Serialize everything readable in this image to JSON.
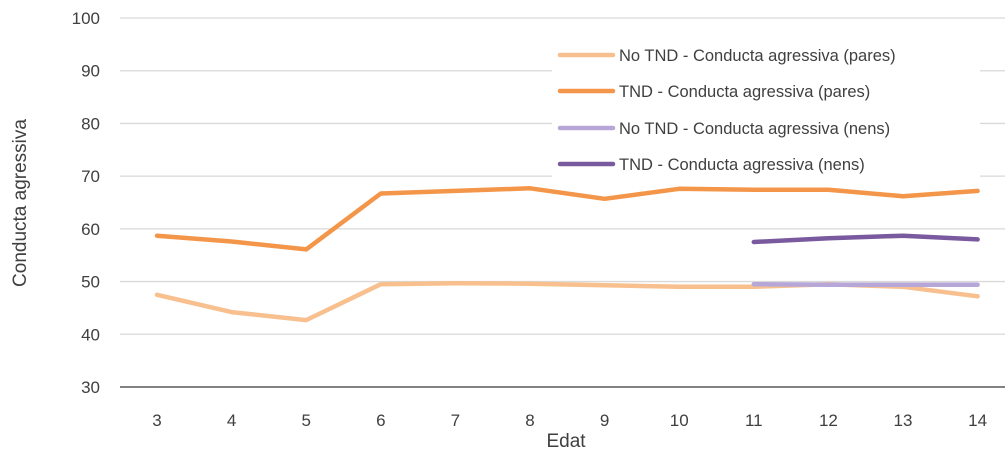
{
  "chart_data": {
    "type": "line",
    "xlabel": "Edat",
    "ylabel": "Conducta agressiva",
    "x": [
      3,
      4,
      5,
      6,
      7,
      8,
      9,
      10,
      11,
      12,
      13,
      14
    ],
    "ylim": [
      30,
      100
    ],
    "yticks": [
      30,
      40,
      50,
      60,
      70,
      80,
      90,
      100
    ],
    "grid": true,
    "legend_position": "top-right",
    "series": [
      {
        "name": "No TND - Conducta agressiva (pares)",
        "color": "#F8C08E",
        "values": [
          47.5,
          44.2,
          42.7,
          49.5,
          49.7,
          49.6,
          49.3,
          49.0,
          49.0,
          49.5,
          49.0,
          47.2
        ]
      },
      {
        "name": "TND - Conducta agressiva (pares)",
        "color": "#F3964A",
        "values": [
          58.7,
          57.6,
          56.1,
          66.7,
          67.2,
          67.7,
          65.7,
          67.6,
          67.4,
          67.4,
          66.2,
          67.2
        ]
      },
      {
        "name": "No TND - Conducta agressiva (nens)",
        "color": "#B7A7D8",
        "values": [
          null,
          null,
          null,
          null,
          null,
          null,
          null,
          null,
          49.5,
          49.4,
          49.4,
          49.4
        ]
      },
      {
        "name": "TND - Conducta agressiva (nens)",
        "color": "#7A5A9E",
        "values": [
          null,
          null,
          null,
          null,
          null,
          null,
          null,
          null,
          57.5,
          58.2,
          58.7,
          58.0
        ]
      }
    ]
  }
}
